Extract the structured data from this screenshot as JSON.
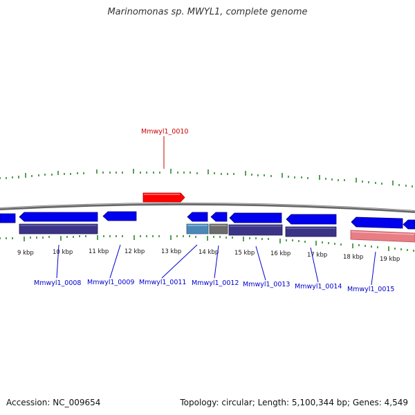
{
  "title": "Marinomonas sp. MWYL1, complete genome",
  "footer": {
    "accession": "Accession: NC_009654",
    "summary": "Topology: circular; Length: 5,100,344 bp; Genes: 4,549"
  },
  "colors": {
    "forward_gene": "#ff0000",
    "reverse_gene": "#0000ff",
    "backbone": "#777777",
    "tick": "#1a7f1a",
    "label_forward": "#cc0000",
    "label_reverse": "#0000cc"
  },
  "scale_labels": [
    "9 kbp",
    "10 kbp",
    "11 kbp",
    "12 kbp",
    "13 kbp",
    "14 kbp",
    "15 kbp",
    "16 kbp",
    "17 kbp",
    "18 kbp",
    "19 kbp"
  ],
  "gene_labels": {
    "top": [
      "Mmwyl1_0010"
    ],
    "bottom": [
      "Mmwyl1_0008",
      "Mmwyl1_0009",
      "Mmwyl1_0011",
      "Mmwyl1_0012",
      "Mmwyl1_0013",
      "Mmwyl1_0014",
      "Mmwyl1_0015"
    ]
  }
}
